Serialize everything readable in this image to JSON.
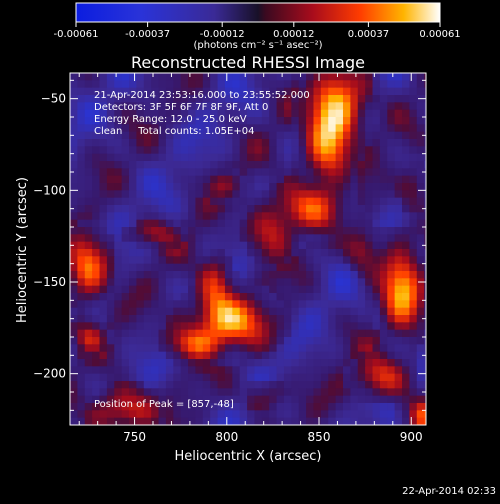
{
  "chart_data": {
    "type": "heatmap",
    "title": "Reconstructed RHESSI Image",
    "xlabel": "Heliocentric X (arcsec)",
    "ylabel": "Heliocentric Y (arcsec)",
    "xlim": [
      715,
      908
    ],
    "ylim": [
      -228,
      -36
    ],
    "x_ticks": [
      750,
      800,
      850,
      900
    ],
    "y_ticks": [
      -50,
      -100,
      -150,
      -200
    ],
    "colorbar": {
      "min": -0.00061,
      "max": 0.00061,
      "tick_values": [
        -0.00061,
        -0.00037,
        -0.00012,
        0.00012,
        0.00037,
        0.00061
      ],
      "tick_labels": [
        "-0.00061",
        "-0.00037",
        "-0.00012",
        "0.00012",
        "0.00037",
        "0.00061"
      ],
      "unit_label": "(photons cm⁻² s⁻¹ asec⁻²)"
    },
    "annotations": [
      "21-Apr-2014 23:53:16.000 to 23:55:52.000",
      "Detectors: 3F 5F 6F 7F 8F 9F, Att 0",
      "Energy Range: 12.0 - 25.0 keV",
      "Clean     Total counts: 1.05E+04"
    ],
    "peak_label": "Position of Peak = [857,-48]",
    "peak": [
      857,
      -48
    ],
    "sources": [
      {
        "x": 857,
        "y": -52,
        "sx": 10,
        "sy": 14,
        "a": 1.0
      },
      {
        "x": 852,
        "y": -78,
        "sx": 8,
        "sy": 12,
        "a": 0.65
      },
      {
        "x": 843,
        "y": -108,
        "sx": 14,
        "sy": 9,
        "a": 0.6
      },
      {
        "x": 822,
        "y": -122,
        "sx": 8,
        "sy": 10,
        "a": 0.45
      },
      {
        "x": 800,
        "y": -170,
        "sx": 15,
        "sy": 10,
        "a": 0.85
      },
      {
        "x": 792,
        "y": -150,
        "sx": 6,
        "sy": 12,
        "a": 0.45
      },
      {
        "x": 780,
        "y": -182,
        "sx": 10,
        "sy": 6,
        "a": 0.5
      },
      {
        "x": 722,
        "y": -140,
        "sx": 8,
        "sy": 12,
        "a": 0.75
      },
      {
        "x": 724,
        "y": -178,
        "sx": 6,
        "sy": 6,
        "a": 0.45
      },
      {
        "x": 893,
        "y": -152,
        "sx": 8,
        "sy": 16,
        "a": 0.9
      },
      {
        "x": 880,
        "y": -200,
        "sx": 10,
        "sy": 8,
        "a": 0.55
      },
      {
        "x": 742,
        "y": -218,
        "sx": 12,
        "sy": 8,
        "a": 0.6
      },
      {
        "x": 905,
        "y": -222,
        "sx": 7,
        "sy": 7,
        "a": 0.6
      },
      {
        "x": 900,
        "y": -95,
        "sx": 6,
        "sy": 8,
        "a": 0.35
      },
      {
        "x": 795,
        "y": -95,
        "sx": 8,
        "sy": 6,
        "a": 0.35
      },
      {
        "x": 760,
        "y": -122,
        "sx": 10,
        "sy": 5,
        "a": 0.35
      },
      {
        "x": 872,
        "y": -130,
        "sx": 6,
        "sy": 8,
        "a": 0.35
      },
      {
        "x": 820,
        "y": -210,
        "sx": 8,
        "sy": 6,
        "a": 0.3
      }
    ],
    "grid": false
  },
  "footer": {
    "timestamp": "22-Apr-2014 02:33"
  }
}
